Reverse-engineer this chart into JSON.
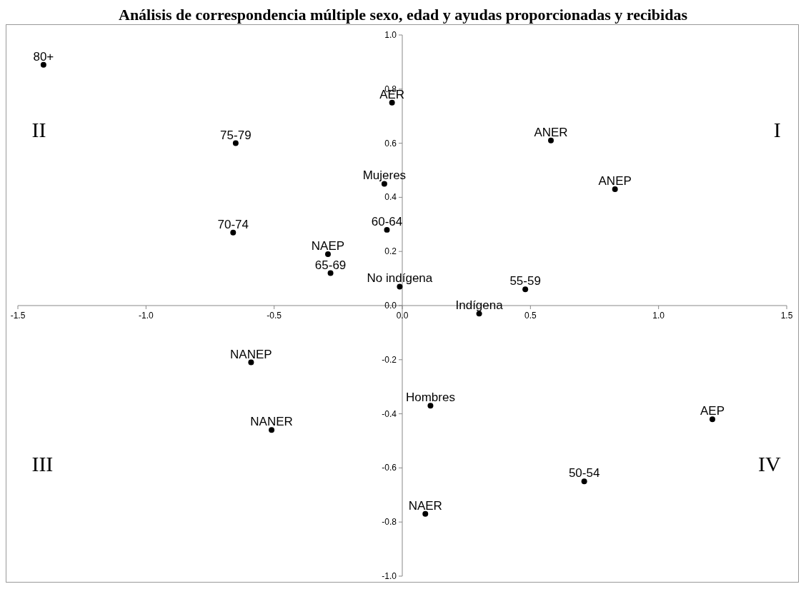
{
  "chart_data": {
    "type": "scatter",
    "title": "Análisis de correspondencia múltiple sexo, edad y ayudas proporcionadas y recibidas",
    "xlim": [
      -1.5,
      1.5
    ],
    "xticks": [
      {
        "value": -1.5,
        "label": "-1.5"
      },
      {
        "value": -1,
        "label": "-1.0"
      },
      {
        "value": -0.5,
        "label": "-0.5"
      },
      {
        "value": 0,
        "label": "0.0"
      },
      {
        "value": 0.5,
        "label": "0.5"
      },
      {
        "value": 1,
        "label": "1.0"
      },
      {
        "value": 1.5,
        "label": "1.5"
      }
    ],
    "ylim": [
      -1,
      1
    ],
    "yticks": [
      {
        "value": -1,
        "label": "-1.0"
      },
      {
        "value": -0.8,
        "label": "-0.8"
      },
      {
        "value": -0.6,
        "label": "-0.6"
      },
      {
        "value": -0.4,
        "label": "-0.4"
      },
      {
        "value": -0.2,
        "label": "-0.2"
      },
      {
        "value": 0,
        "label": "0.0"
      },
      {
        "value": 0.2,
        "label": "0.2"
      },
      {
        "value": 0.4,
        "label": "0.4"
      },
      {
        "value": 0.6,
        "label": "0.6"
      },
      {
        "value": 0.8,
        "label": "0.8"
      },
      {
        "value": 1,
        "label": "1.0"
      }
    ],
    "grid": false,
    "marker": "circle",
    "annotations": [
      "II",
      "I",
      "III",
      "IV"
    ],
    "series": [
      {
        "name": "80+",
        "color": "#000000",
        "x": [
          -1.4
        ],
        "values": [
          0.89
        ]
      },
      {
        "name": "AER",
        "color": "#000000",
        "x": [
          -0.04
        ],
        "values": [
          0.75
        ]
      },
      {
        "name": "75-79",
        "color": "#000000",
        "x": [
          -0.65
        ],
        "values": [
          0.6
        ]
      },
      {
        "name": "ANER",
        "color": "#000000",
        "x": [
          0.58
        ],
        "values": [
          0.61
        ]
      },
      {
        "name": "ANEP",
        "color": "#000000",
        "x": [
          0.83
        ],
        "values": [
          0.43
        ]
      },
      {
        "name": "Mujeres",
        "color": "#000000",
        "x": [
          -0.07
        ],
        "values": [
          0.45
        ]
      },
      {
        "name": "70-74",
        "color": "#000000",
        "x": [
          -0.66
        ],
        "values": [
          0.27
        ]
      },
      {
        "name": "60-64",
        "color": "#000000",
        "x": [
          -0.06
        ],
        "values": [
          0.28
        ]
      },
      {
        "name": "NAEP",
        "color": "#000000",
        "x": [
          -0.29
        ],
        "values": [
          0.19
        ]
      },
      {
        "name": "65-69",
        "color": "#000000",
        "x": [
          -0.28
        ],
        "values": [
          0.12
        ]
      },
      {
        "name": "No indígena",
        "color": "#000000",
        "x": [
          -0.01
        ],
        "values": [
          0.07
        ]
      },
      {
        "name": "55-59",
        "color": "#000000",
        "x": [
          0.48
        ],
        "values": [
          0.06
        ]
      },
      {
        "name": "Indígena",
        "color": "#000000",
        "x": [
          0.3
        ],
        "values": [
          -0.03
        ]
      },
      {
        "name": "NANEP",
        "color": "#000000",
        "x": [
          -0.59
        ],
        "values": [
          -0.21
        ]
      },
      {
        "name": "Hombres",
        "color": "#000000",
        "x": [
          0.11
        ],
        "values": [
          -0.37
        ]
      },
      {
        "name": "NANER",
        "color": "#000000",
        "x": [
          -0.51
        ],
        "values": [
          -0.46
        ]
      },
      {
        "name": "AEP",
        "color": "#000000",
        "x": [
          1.21
        ],
        "values": [
          -0.42
        ]
      },
      {
        "name": "50-54",
        "color": "#000000",
        "x": [
          0.71
        ],
        "values": [
          -0.65
        ]
      },
      {
        "name": "NAER",
        "color": "#000000",
        "x": [
          0.09
        ],
        "values": [
          -0.77
        ]
      }
    ]
  }
}
